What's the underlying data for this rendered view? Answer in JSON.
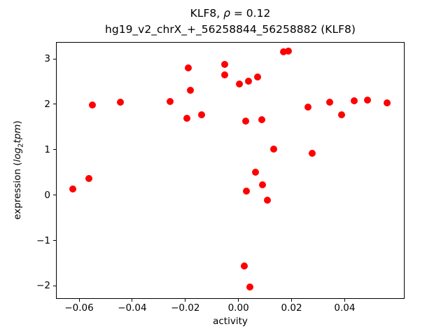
{
  "figure": {
    "title": {
      "prefix": "KLF8, ",
      "rho": "ρ",
      "suffix": " = 0.12"
    },
    "subtitle": "hg19_v2_chrX_+_56258844_56258882 (KLF8)",
    "xlabel": "activity",
    "ylabel": {
      "prefix": "expression (",
      "log_word": "log",
      "log_sub": "2",
      "tpm_word": "tpm",
      "suffix": ")"
    }
  },
  "chart_data": {
    "type": "scatter",
    "title": "KLF8, ρ = 0.12",
    "subtitle": "hg19_v2_chrX_+_56258844_56258882 (KLF8)",
    "xlabel": "activity",
    "ylabel": "expression (log2tpm)",
    "rho": 0.12,
    "marker": "circle",
    "marker_color": "#ff0000",
    "marker_diameter_px": 10,
    "grid": false,
    "legend": null,
    "xlim": [
      -0.0687,
      0.0623
    ],
    "ylim": [
      -2.27,
      3.37
    ],
    "xticks": {
      "values": [
        -0.06,
        -0.04,
        -0.02,
        0.0,
        0.02,
        0.04
      ],
      "labels": [
        "−0.06",
        "−0.04",
        "−0.02",
        "0.00",
        "0.02",
        "0.04"
      ]
    },
    "yticks": {
      "values": [
        3,
        2,
        1,
        0,
        -1,
        -2
      ],
      "labels": [
        "3",
        "2",
        "1",
        "0",
        "−1",
        "−2"
      ]
    },
    "points": [
      [
        -0.0624,
        0.14
      ],
      [
        -0.0562,
        0.37
      ],
      [
        -0.0549,
        1.98
      ],
      [
        -0.0445,
        2.04
      ],
      [
        -0.0257,
        2.06
      ],
      [
        -0.0188,
        2.8
      ],
      [
        -0.0181,
        2.31
      ],
      [
        -0.0195,
        1.69
      ],
      [
        -0.0139,
        1.77
      ],
      [
        -0.0051,
        2.88
      ],
      [
        -0.0053,
        2.64
      ],
      [
        0.0004,
        2.45
      ],
      [
        0.0039,
        2.51
      ],
      [
        0.0072,
        2.6
      ],
      [
        0.0028,
        1.63
      ],
      [
        0.0089,
        1.66
      ],
      [
        0.0134,
        1.02
      ],
      [
        0.0278,
        0.92
      ],
      [
        0.0063,
        0.5
      ],
      [
        0.009,
        0.22
      ],
      [
        0.0029,
        0.09
      ],
      [
        0.0108,
        -0.11
      ],
      [
        0.0022,
        -1.56
      ],
      [
        0.0042,
        -2.02
      ],
      [
        0.0263,
        1.93
      ],
      [
        0.0344,
        2.05
      ],
      [
        0.0389,
        1.76
      ],
      [
        0.0437,
        2.08
      ],
      [
        0.0487,
        2.09
      ],
      [
        0.0559,
        2.03
      ],
      [
        0.017,
        3.16
      ],
      [
        0.0187,
        3.17
      ]
    ]
  }
}
